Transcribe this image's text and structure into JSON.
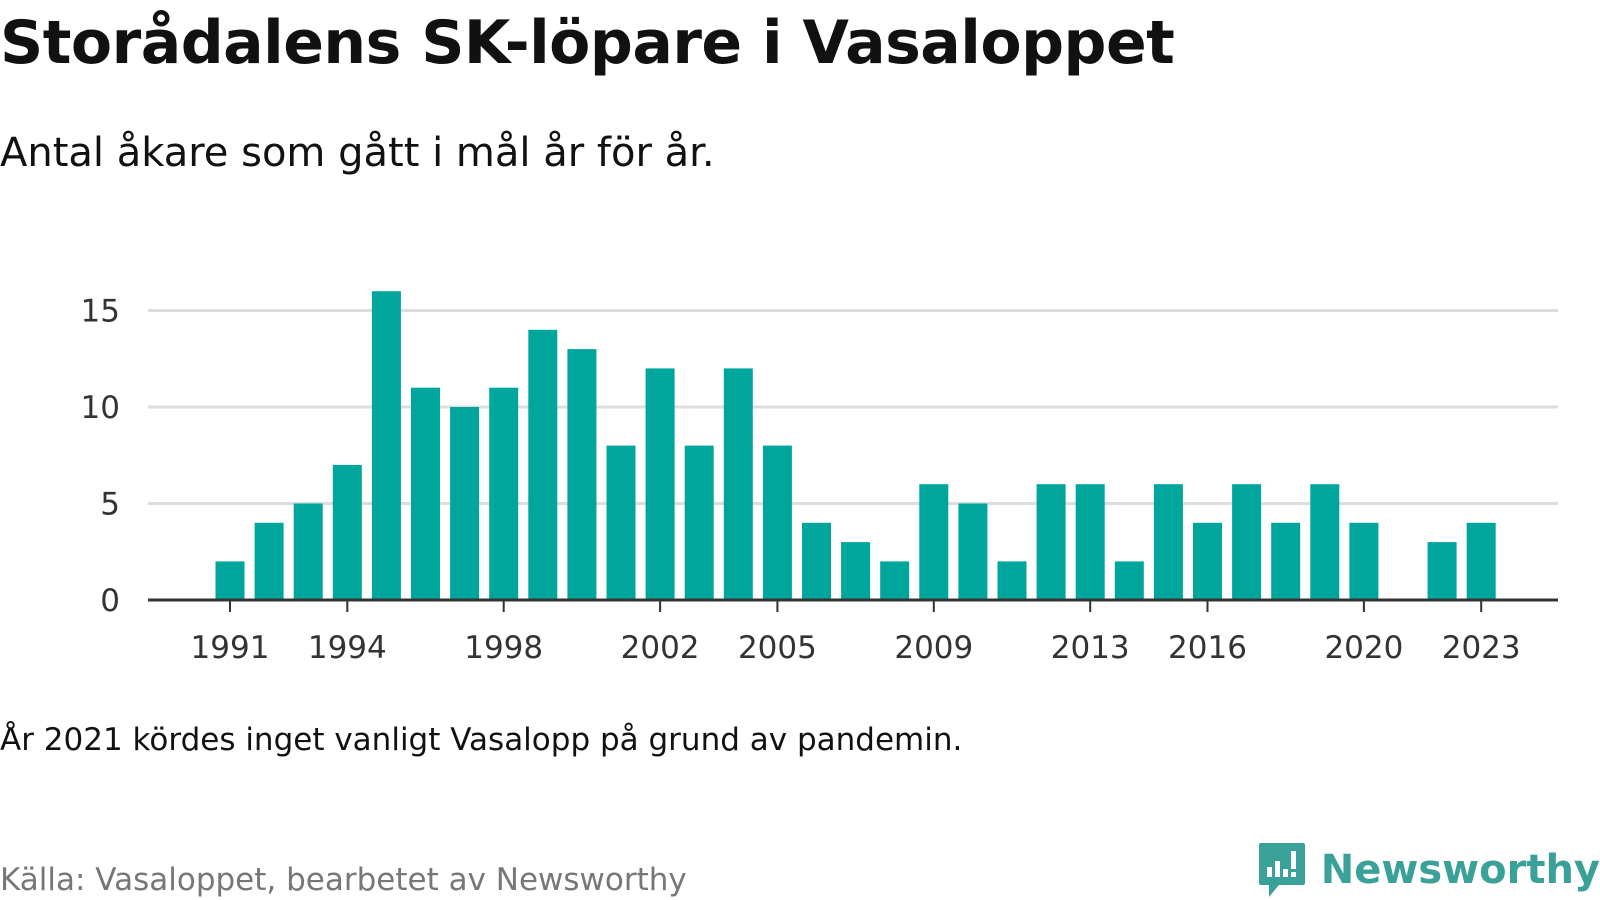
{
  "header": {
    "title": "Storådalens SK-löpare i Vasaloppet",
    "subtitle": "Antal åkare som gått i mål år för år."
  },
  "footer": {
    "note": "År 2021 kördes inget vanligt Vasalopp på grund av pandemin.",
    "source": "Källa: Vasaloppet, bearbetet av Newsworthy",
    "brand": "Newsworthy",
    "brand_color": "#3aa199",
    "brand_icon": "bar-chart-speech-bubble-icon"
  },
  "chart_data": {
    "type": "bar",
    "title": "Storådalens SK-löpare i Vasaloppet",
    "subtitle": "Antal åkare som gått i mål år för år.",
    "xlabel": "",
    "ylabel": "",
    "categories": [
      1991,
      1992,
      1993,
      1994,
      1995,
      1996,
      1997,
      1998,
      1999,
      2000,
      2001,
      2002,
      2003,
      2004,
      2005,
      2006,
      2007,
      2008,
      2009,
      2010,
      2011,
      2012,
      2013,
      2014,
      2015,
      2016,
      2017,
      2018,
      2019,
      2020,
      2021,
      2022,
      2023
    ],
    "values": [
      2,
      4,
      5,
      7,
      16,
      11,
      10,
      11,
      14,
      13,
      8,
      12,
      8,
      12,
      8,
      4,
      3,
      2,
      6,
      5,
      2,
      6,
      6,
      2,
      6,
      4,
      6,
      4,
      6,
      4,
      0,
      3,
      4
    ],
    "x_tick_labels": [
      "1991",
      "1994",
      "1998",
      "2002",
      "2005",
      "2009",
      "2013",
      "2016",
      "2020",
      "2023"
    ],
    "y_ticks": [
      0,
      5,
      10,
      15
    ],
    "ylim": [
      0,
      16
    ],
    "grid": true,
    "bar_color": "#00a59b",
    "grid_color": "#dddddd",
    "axis_color": "#333333"
  }
}
